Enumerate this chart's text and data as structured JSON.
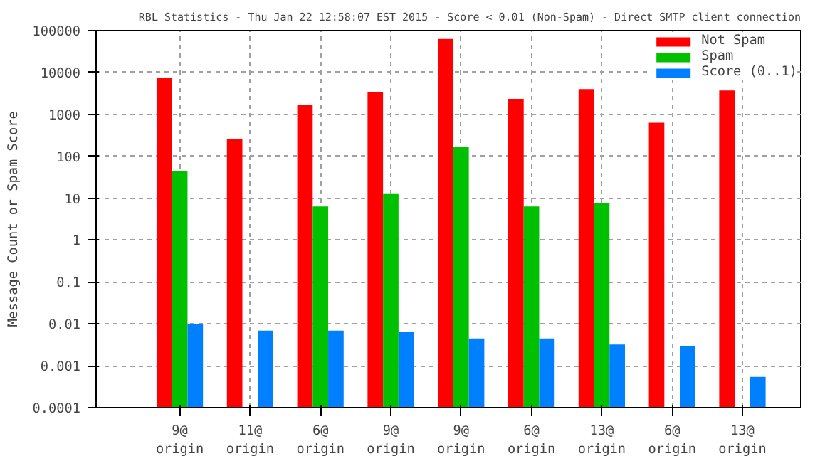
{
  "chart_data": {
    "type": "bar",
    "title": "RBL Statistics - Thu Jan 22 12:58:07 EST 2015 - Score < 0.01 (Non-Spam) - Direct SMTP client connection",
    "ylabel": "Message Count or Spam Score",
    "categories": [
      "9@\norigin",
      "11@\norigin",
      "6@\norigin",
      "9@\norigin",
      "9@\norigin",
      "6@\norigin",
      "13@\norigin",
      "6@\norigin",
      "13@\norigin"
    ],
    "series": [
      {
        "name": "Not Spam",
        "color": "#ff0000",
        "values": [
          7500,
          260,
          1650,
          3400,
          63000,
          2350,
          4000,
          630,
          3700
        ]
      },
      {
        "name": "Spam",
        "color": "#00c000",
        "values": [
          45,
          null,
          6.3,
          13,
          165,
          6.3,
          7.5,
          null,
          null
        ]
      },
      {
        "name": "Score (0..1)",
        "color": "#0080ff",
        "values": [
          0.0098,
          0.0069,
          0.0069,
          0.0063,
          0.0045,
          0.0045,
          0.0032,
          0.0029,
          0.00054
        ]
      }
    ],
    "log": "y",
    "ylim": [
      0.0001,
      100000
    ],
    "yticks": [
      0.0001,
      0.001,
      0.01,
      0.1,
      1,
      10,
      100,
      1000,
      10000,
      100000
    ],
    "grid": true,
    "legend": "top right"
  }
}
